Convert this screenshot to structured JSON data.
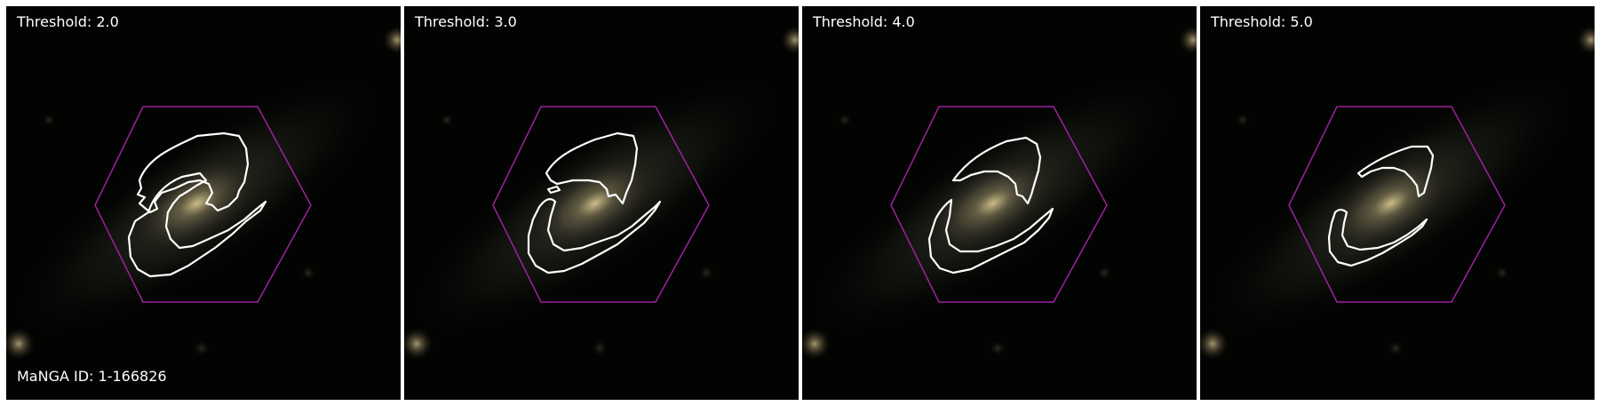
{
  "panels": [
    {
      "threshold_label": "Threshold: 2.0"
    },
    {
      "threshold_label": "Threshold: 3.0"
    },
    {
      "threshold_label": "Threshold: 4.0"
    },
    {
      "threshold_label": "Threshold: 5.0"
    }
  ],
  "manga_id_label": "MaNGA ID: 1-166826",
  "colors": {
    "background": "#030302",
    "hexagon": "#a020a0",
    "contour": "#ffffff",
    "galaxy_core": "#c8ba8a",
    "text": "#ffffff"
  },
  "icons": [
    "hexagon-ifu-footprint",
    "contour-outline"
  ]
}
